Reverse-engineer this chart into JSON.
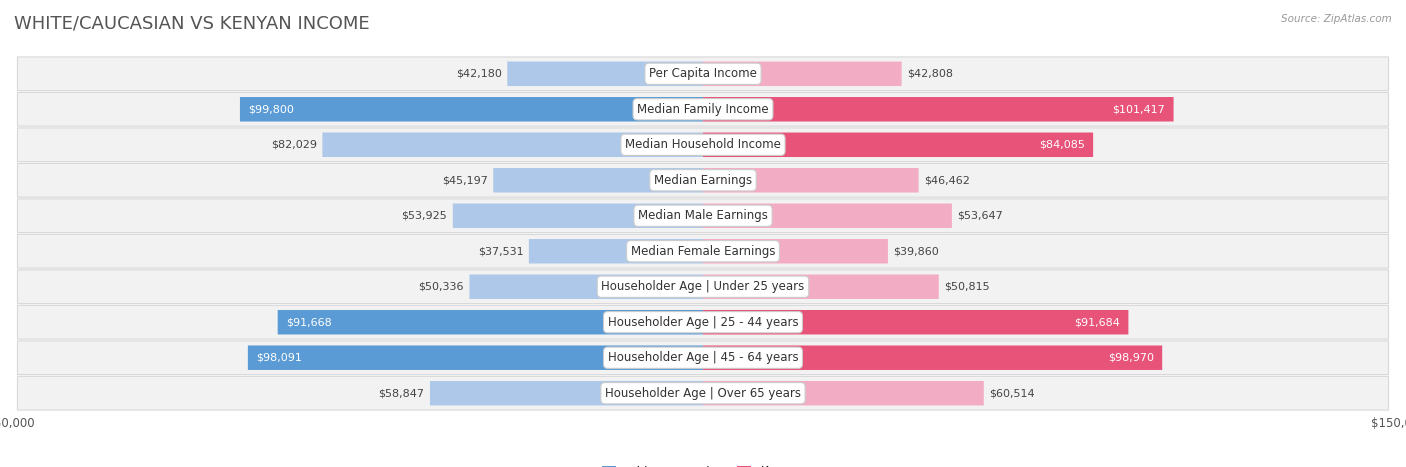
{
  "title": "WHITE/CAUCASIAN VS KENYAN INCOME",
  "source": "Source: ZipAtlas.com",
  "categories": [
    "Per Capita Income",
    "Median Family Income",
    "Median Household Income",
    "Median Earnings",
    "Median Male Earnings",
    "Median Female Earnings",
    "Householder Age | Under 25 years",
    "Householder Age | 25 - 44 years",
    "Householder Age | 45 - 64 years",
    "Householder Age | Over 65 years"
  ],
  "white_values": [
    42180,
    99800,
    82029,
    45197,
    53925,
    37531,
    50336,
    91668,
    98091,
    58847
  ],
  "kenyan_values": [
    42808,
    101417,
    84085,
    46462,
    53647,
    39860,
    50815,
    91684,
    98970,
    60514
  ],
  "white_color_light": "#adc8e8",
  "kenyan_color_light": "#f2adc4",
  "white_color_dark": "#5b9bd5",
  "kenyan_color_dark": "#e8537a",
  "white_label": "White/Caucasian",
  "kenyan_label": "Kenyan",
  "max_val": 150000,
  "bg_color": "#ffffff",
  "title_fontsize": 13,
  "label_fontsize": 8.5,
  "value_fontsize": 8.0
}
